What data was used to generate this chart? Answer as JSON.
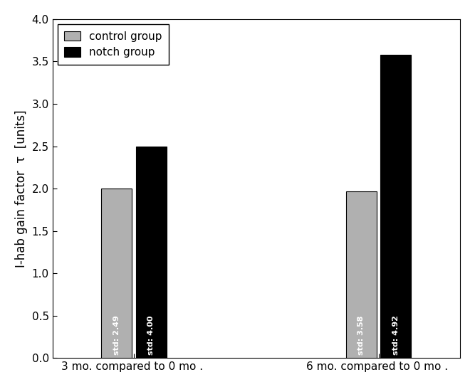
{
  "groups": [
    "3 mo. compared to 0 mo . ",
    "6 mo. compared to 0 mo . "
  ],
  "control_values": [
    2.0,
    1.97
  ],
  "notch_values": [
    2.5,
    3.58
  ],
  "control_stds": [
    "std: 2.49",
    "std: 3.58"
  ],
  "notch_stds": [
    "std: 4.00",
    "std: 4.92"
  ],
  "control_color": "#b0b0b0",
  "notch_color": "#000000",
  "ylabel": "I-hab gain factor  τ  [units]",
  "ylim": [
    0.0,
    4.0
  ],
  "yticks": [
    0.0,
    0.5,
    1.0,
    1.5,
    2.0,
    2.5,
    3.0,
    3.5,
    4.0
  ],
  "bar_width": 0.15,
  "legend_labels": [
    "control group",
    "notch group"
  ],
  "background_color": "#ffffff",
  "font_size": 11,
  "std_font_size": 8,
  "label_font_size": 12,
  "group_centers": [
    1.0,
    2.2
  ],
  "bar_gap": 0.02
}
